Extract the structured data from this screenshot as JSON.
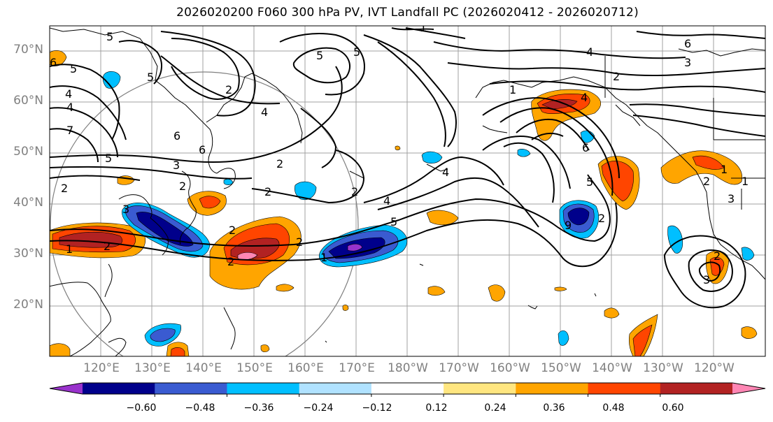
{
  "title": "2026020200 F060 300 hPa PV, IVT Landfall PC (2026020412 - 2026020712)",
  "lat_labels": [
    "70°N",
    "60°N",
    "50°N",
    "40°N",
    "30°N",
    "20°N"
  ],
  "lon_labels": [
    "120°E",
    "130°E",
    "140°E",
    "150°E",
    "160°E",
    "170°E",
    "180°W",
    "170°W",
    "160°W",
    "150°W",
    "140°W",
    "130°W",
    "120°W"
  ],
  "contour_labels": [
    "1",
    "5",
    "4",
    "2",
    "5",
    "6",
    "4",
    "2",
    "3",
    "1",
    "2",
    "4",
    "1",
    "4",
    "5",
    "2",
    "6",
    "5",
    "3",
    "2",
    "1",
    "2",
    "4",
    "5",
    "3",
    "6",
    "5",
    "4",
    "6",
    "7",
    "5",
    "2",
    "2",
    "3",
    "2",
    "2",
    "1",
    "1",
    "2",
    "2",
    "9",
    "2",
    "4",
    "6",
    "5",
    "2",
    "3"
  ],
  "colorbar": {
    "ticks": [
      "−0.60",
      "−0.48",
      "−0.36",
      "−0.24",
      "−0.12",
      "0.12",
      "0.24",
      "0.36",
      "0.48",
      "0.60"
    ],
    "colors": [
      "#9932cc",
      "#00008b",
      "#3a5bd1",
      "#00bfff",
      "#b0e2ff",
      "#ffffff",
      "#ffe680",
      "#ffa500",
      "#ff4500",
      "#b22222",
      "#ff86b4"
    ]
  }
}
